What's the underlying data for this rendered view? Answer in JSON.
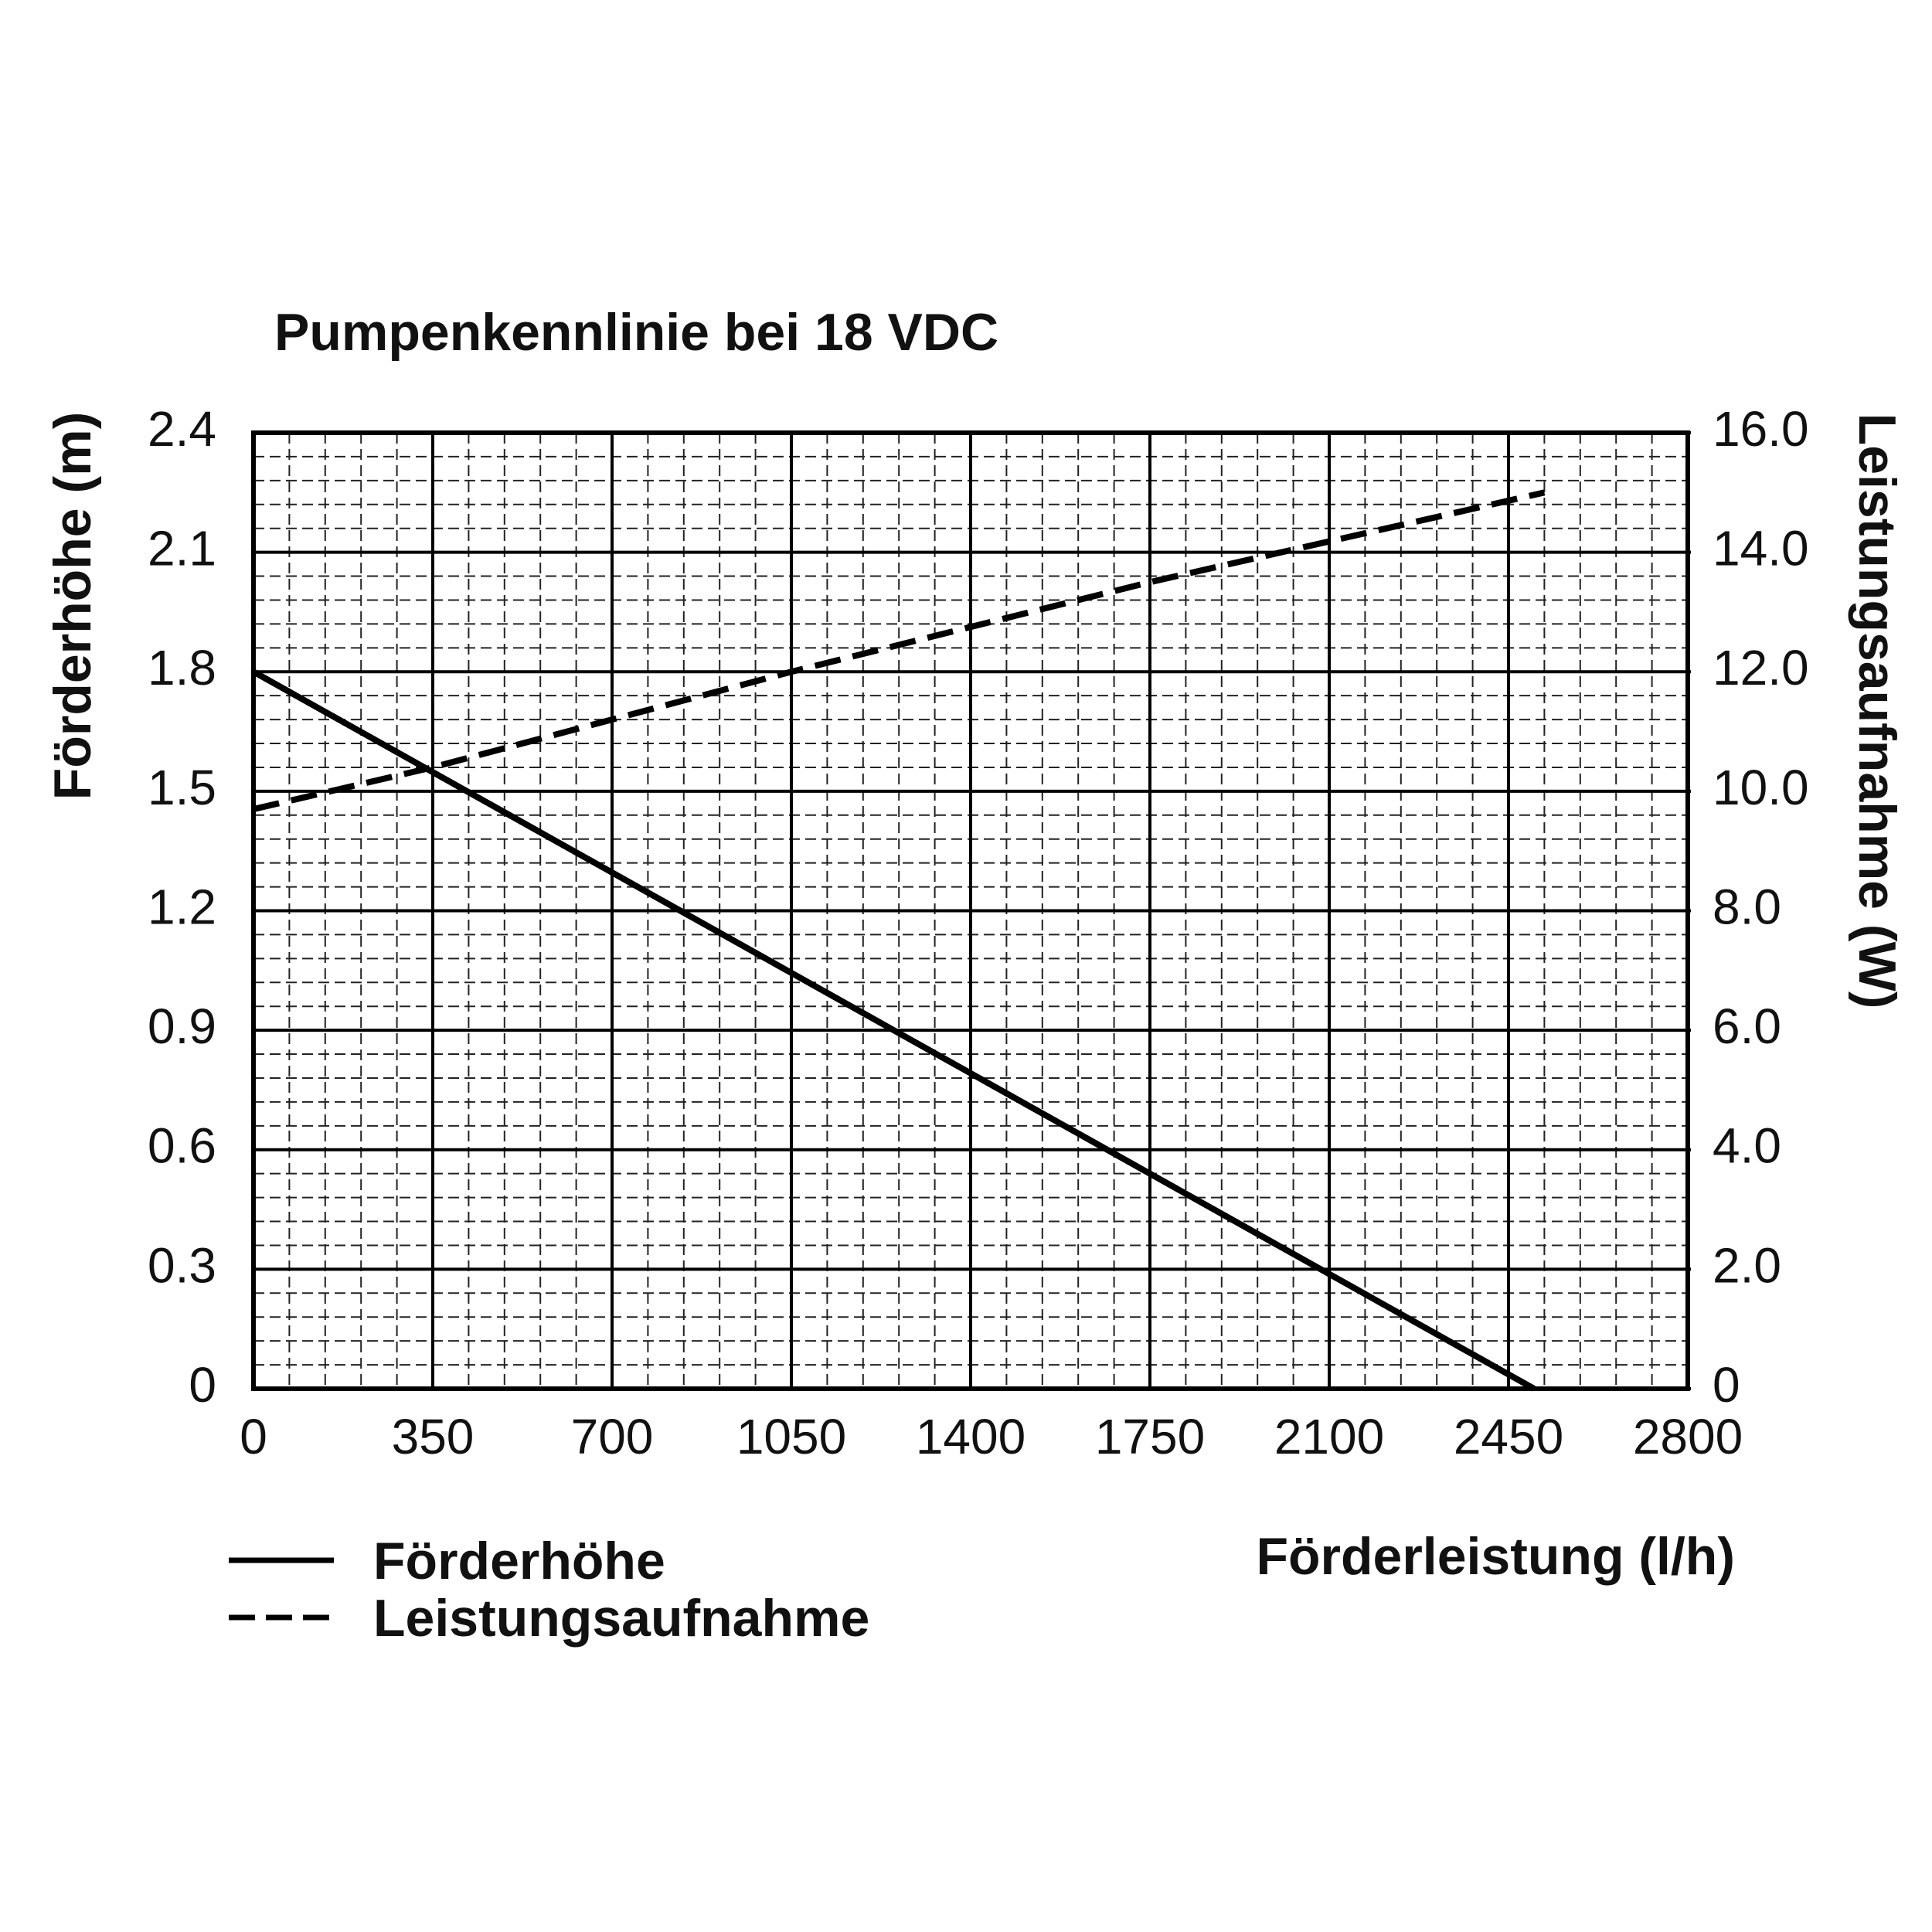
{
  "chart_data": {
    "type": "line",
    "title": "Pumpenkennlinie bei 18 VDC",
    "x_label": "Förderleistung (l/h)",
    "y_label": "Förderhöhe (m)",
    "y2_label": "Leistungsaufnahme (W)",
    "xlim": [
      0,
      2800
    ],
    "xticks": [
      0,
      350,
      700,
      1050,
      1400,
      1750,
      2100,
      2450,
      2800
    ],
    "ylim": [
      0,
      2.4
    ],
    "yticks": [
      0,
      0.3,
      0.6,
      0.9,
      1.2,
      1.5,
      1.8,
      2.1,
      2.4
    ],
    "y2lim": [
      0,
      16
    ],
    "y2ticks": [
      0,
      {
        "value": 2,
        "label": "2.0"
      },
      {
        "value": 4,
        "label": "4.0"
      },
      {
        "value": 6,
        "label": "6.0"
      },
      {
        "value": 8,
        "label": "8.0"
      },
      {
        "value": 10,
        "label": "10.0"
      },
      {
        "value": 12,
        "label": "12.0"
      },
      {
        "value": 14,
        "label": "14.0"
      },
      {
        "value": 16,
        "label": "16.0"
      }
    ],
    "grid": true,
    "legend": "bottom-left",
    "series": [
      {
        "name": "Förderhöhe",
        "color": "#000000",
        "dash": false,
        "x": [
          0,
          2500
        ],
        "values": [
          1.8,
          0
        ]
      },
      {
        "name": "Leistungsaufnahme",
        "color": "#000000",
        "dash": true,
        "axis": "y2",
        "x": [
          0,
          350,
          1050,
          1750,
          2520
        ],
        "values": [
          9.7,
          10.4,
          12.0,
          13.5,
          15.0
        ]
      }
    ]
  }
}
